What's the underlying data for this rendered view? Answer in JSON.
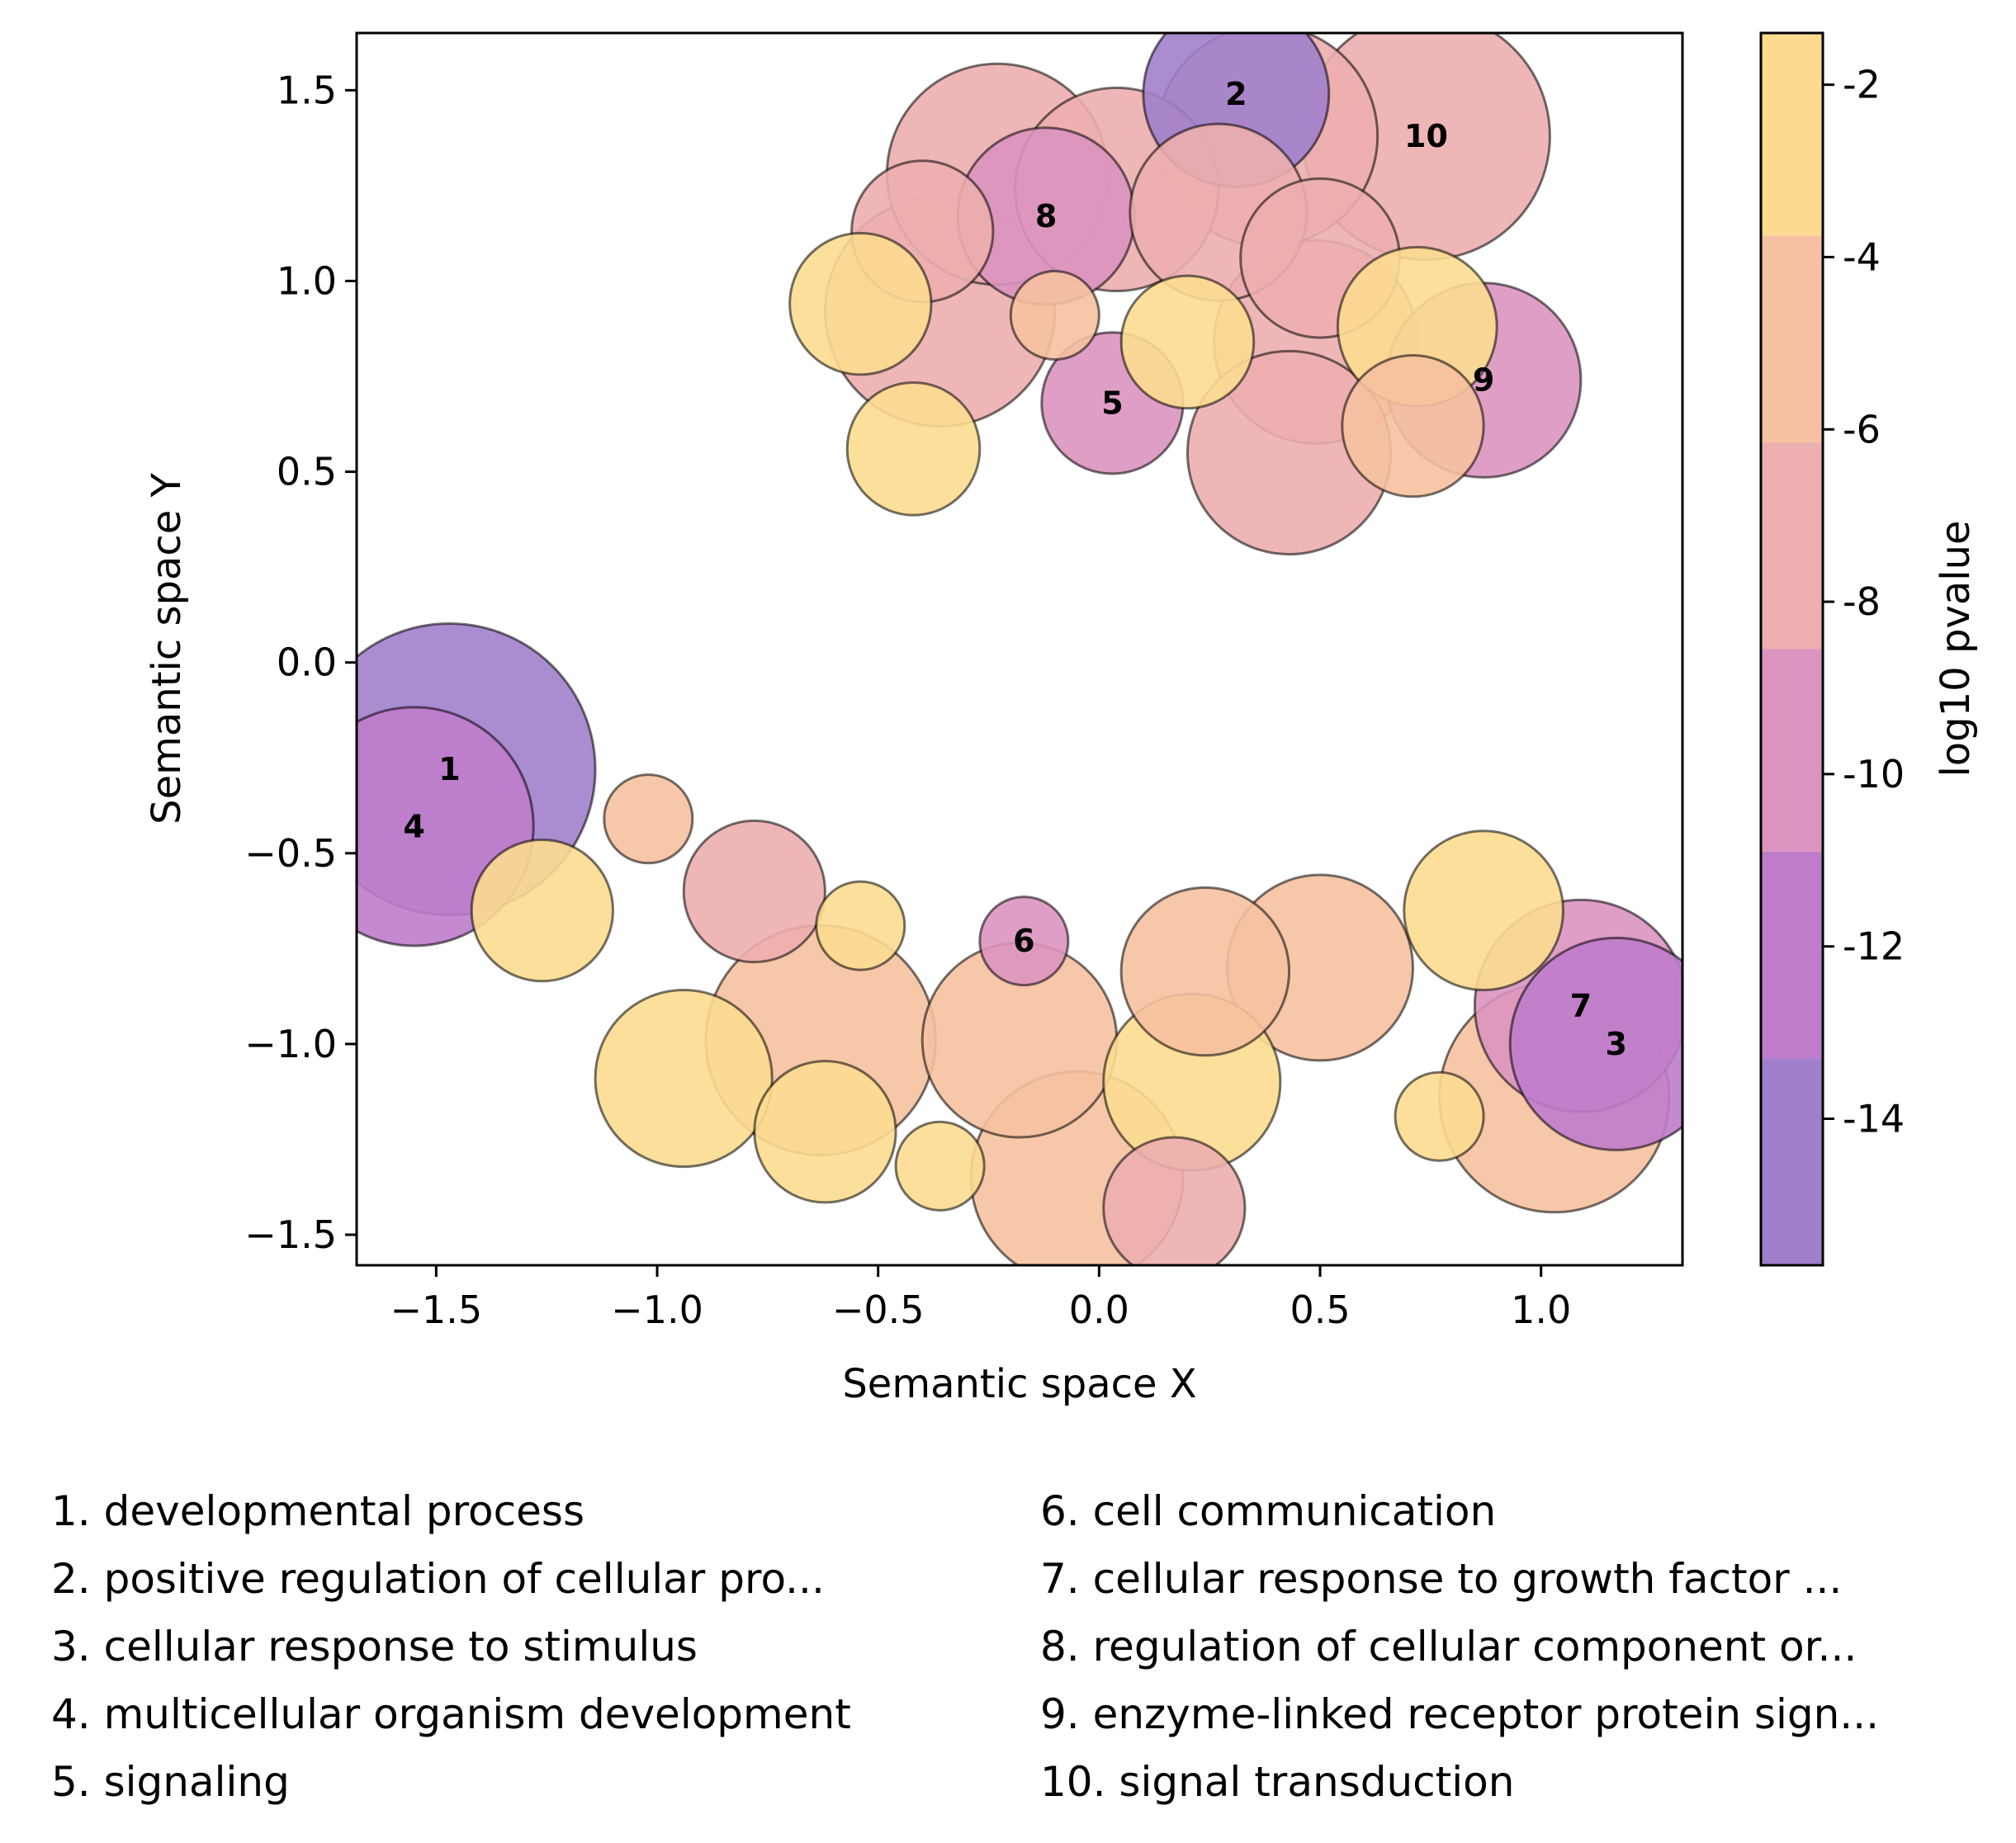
{
  "chart_data": {
    "type": "scatter",
    "xlabel": "Semantic space X",
    "ylabel": "Semantic space Y",
    "xlim": [
      -1.68,
      1.32
    ],
    "ylim": [
      -1.58,
      1.65
    ],
    "xticks": [
      {
        "value": -1.5,
        "label": "−1.5"
      },
      {
        "value": -1.0,
        "label": "−1.0"
      },
      {
        "value": -0.5,
        "label": "−0.5"
      },
      {
        "value": 0.0,
        "label": "0.0"
      },
      {
        "value": 0.5,
        "label": "0.5"
      },
      {
        "value": 1.0,
        "label": "1.0"
      }
    ],
    "yticks": [
      {
        "value": 1.5,
        "label": "1.5"
      },
      {
        "value": 1.0,
        "label": "1.0"
      },
      {
        "value": 0.5,
        "label": "0.5"
      },
      {
        "value": 0.0,
        "label": "0.0"
      },
      {
        "value": -0.5,
        "label": "−0.5"
      },
      {
        "value": -1.0,
        "label": "−1.0"
      },
      {
        "value": -1.5,
        "label": "−1.5"
      }
    ],
    "colorbar": {
      "label": "log10 pvalue",
      "range": [
        -15.7,
        -1.4
      ],
      "ticks": [
        {
          "value": -2,
          "label": "-2"
        },
        {
          "value": -4,
          "label": "-4"
        },
        {
          "value": -6,
          "label": "-6"
        },
        {
          "value": -8,
          "label": "-8"
        },
        {
          "value": -10,
          "label": "-10"
        },
        {
          "value": -12,
          "label": "-12"
        },
        {
          "value": -14,
          "label": "-14"
        }
      ],
      "bands": [
        {
          "from": -15.7,
          "to": -13.3,
          "color": "#a17fcb"
        },
        {
          "from": -13.3,
          "to": -10.9,
          "color": "#bf7ccb"
        },
        {
          "from": -10.9,
          "to": -8.55,
          "color": "#da94bf"
        },
        {
          "from": -8.55,
          "to": -6.15,
          "color": "#ecaeae"
        },
        {
          "from": -6.15,
          "to": -3.75,
          "color": "#f6c1a0"
        },
        {
          "from": -3.75,
          "to": -1.4,
          "color": "#fcdb90"
        }
      ]
    },
    "points": [
      {
        "x": -1.47,
        "y": -0.28,
        "r": 0.33,
        "logp": -15,
        "label": "1"
      },
      {
        "x": -1.55,
        "y": -0.43,
        "r": 0.27,
        "logp": -12,
        "label": "4"
      },
      {
        "x": 0.31,
        "y": 1.49,
        "r": 0.21,
        "logp": -15,
        "label": "2"
      },
      {
        "x": 0.74,
        "y": 1.38,
        "r": 0.28,
        "logp": -8,
        "label": "10"
      },
      {
        "x": -0.12,
        "y": 1.17,
        "r": 0.2,
        "logp": -10,
        "label": "8"
      },
      {
        "x": 0.03,
        "y": 0.68,
        "r": 0.16,
        "logp": -10,
        "label": "5"
      },
      {
        "x": 0.87,
        "y": 0.74,
        "r": 0.22,
        "logp": -10,
        "label": "9"
      },
      {
        "x": -0.17,
        "y": -0.73,
        "r": 0.1,
        "logp": -10,
        "label": "6"
      },
      {
        "x": 1.09,
        "y": -0.9,
        "r": 0.24,
        "logp": -10,
        "label": "7"
      },
      {
        "x": 1.17,
        "y": -1.0,
        "r": 0.24,
        "logp": -12,
        "label": "3"
      },
      {
        "x": 0.38,
        "y": 1.38,
        "r": 0.25,
        "logp": -8
      },
      {
        "x": -0.23,
        "y": 1.28,
        "r": 0.25,
        "logp": -8
      },
      {
        "x": 0.04,
        "y": 1.24,
        "r": 0.23,
        "logp": -8
      },
      {
        "x": -0.4,
        "y": 1.13,
        "r": 0.16,
        "logp": -8
      },
      {
        "x": 0.27,
        "y": 1.18,
        "r": 0.2,
        "logp": -8
      },
      {
        "x": 0.5,
        "y": 1.06,
        "r": 0.18,
        "logp": -8
      },
      {
        "x": -0.54,
        "y": 0.94,
        "r": 0.16,
        "logp": -2
      },
      {
        "x": -0.36,
        "y": 0.92,
        "r": 0.26,
        "logp": -8
      },
      {
        "x": -0.1,
        "y": 0.91,
        "r": 0.1,
        "logp": -4
      },
      {
        "x": 0.2,
        "y": 0.84,
        "r": 0.15,
        "logp": -2
      },
      {
        "x": 0.72,
        "y": 0.88,
        "r": 0.18,
        "logp": -2
      },
      {
        "x": 0.49,
        "y": 0.84,
        "r": 0.23,
        "logp": -8
      },
      {
        "x": 0.71,
        "y": 0.62,
        "r": 0.16,
        "logp": -4
      },
      {
        "x": 0.43,
        "y": 0.55,
        "r": 0.23,
        "logp": -8
      },
      {
        "x": -0.42,
        "y": 0.56,
        "r": 0.15,
        "logp": -2
      },
      {
        "x": -1.02,
        "y": -0.41,
        "r": 0.1,
        "logp": -4
      },
      {
        "x": -1.26,
        "y": -0.65,
        "r": 0.16,
        "logp": -2
      },
      {
        "x": -0.78,
        "y": -0.6,
        "r": 0.16,
        "logp": -8
      },
      {
        "x": -0.54,
        "y": -0.69,
        "r": 0.1,
        "logp": -2
      },
      {
        "x": -0.94,
        "y": -1.09,
        "r": 0.2,
        "logp": -2
      },
      {
        "x": -0.63,
        "y": -0.99,
        "r": 0.26,
        "logp": -4
      },
      {
        "x": -0.62,
        "y": -1.23,
        "r": 0.16,
        "logp": -2
      },
      {
        "x": -0.36,
        "y": -1.32,
        "r": 0.1,
        "logp": -2
      },
      {
        "x": -0.18,
        "y": -0.99,
        "r": 0.22,
        "logp": -4
      },
      {
        "x": 0.24,
        "y": -0.81,
        "r": 0.19,
        "logp": -4
      },
      {
        "x": 0.5,
        "y": -0.8,
        "r": 0.21,
        "logp": -4
      },
      {
        "x": 0.21,
        "y": -1.1,
        "r": 0.2,
        "logp": -2
      },
      {
        "x": -0.05,
        "y": -1.35,
        "r": 0.24,
        "logp": -4
      },
      {
        "x": 0.17,
        "y": -1.43,
        "r": 0.16,
        "logp": -8
      },
      {
        "x": 0.87,
        "y": -0.65,
        "r": 0.18,
        "logp": -2
      },
      {
        "x": 0.77,
        "y": -1.19,
        "r": 0.1,
        "logp": -2
      },
      {
        "x": 1.03,
        "y": -1.14,
        "r": 0.26,
        "logp": -4
      }
    ]
  },
  "legend": {
    "left": [
      "1. developmental process",
      "2. positive regulation of cellular pro...",
      "3. cellular response to stimulus",
      "4. multicellular organism development",
      "5. signaling"
    ],
    "right": [
      "6. cell communication",
      "7. cellular response to growth factor ...",
      "8. regulation of cellular component or...",
      "9. enzyme-linked receptor protein sign...",
      "10. signal transduction"
    ]
  }
}
